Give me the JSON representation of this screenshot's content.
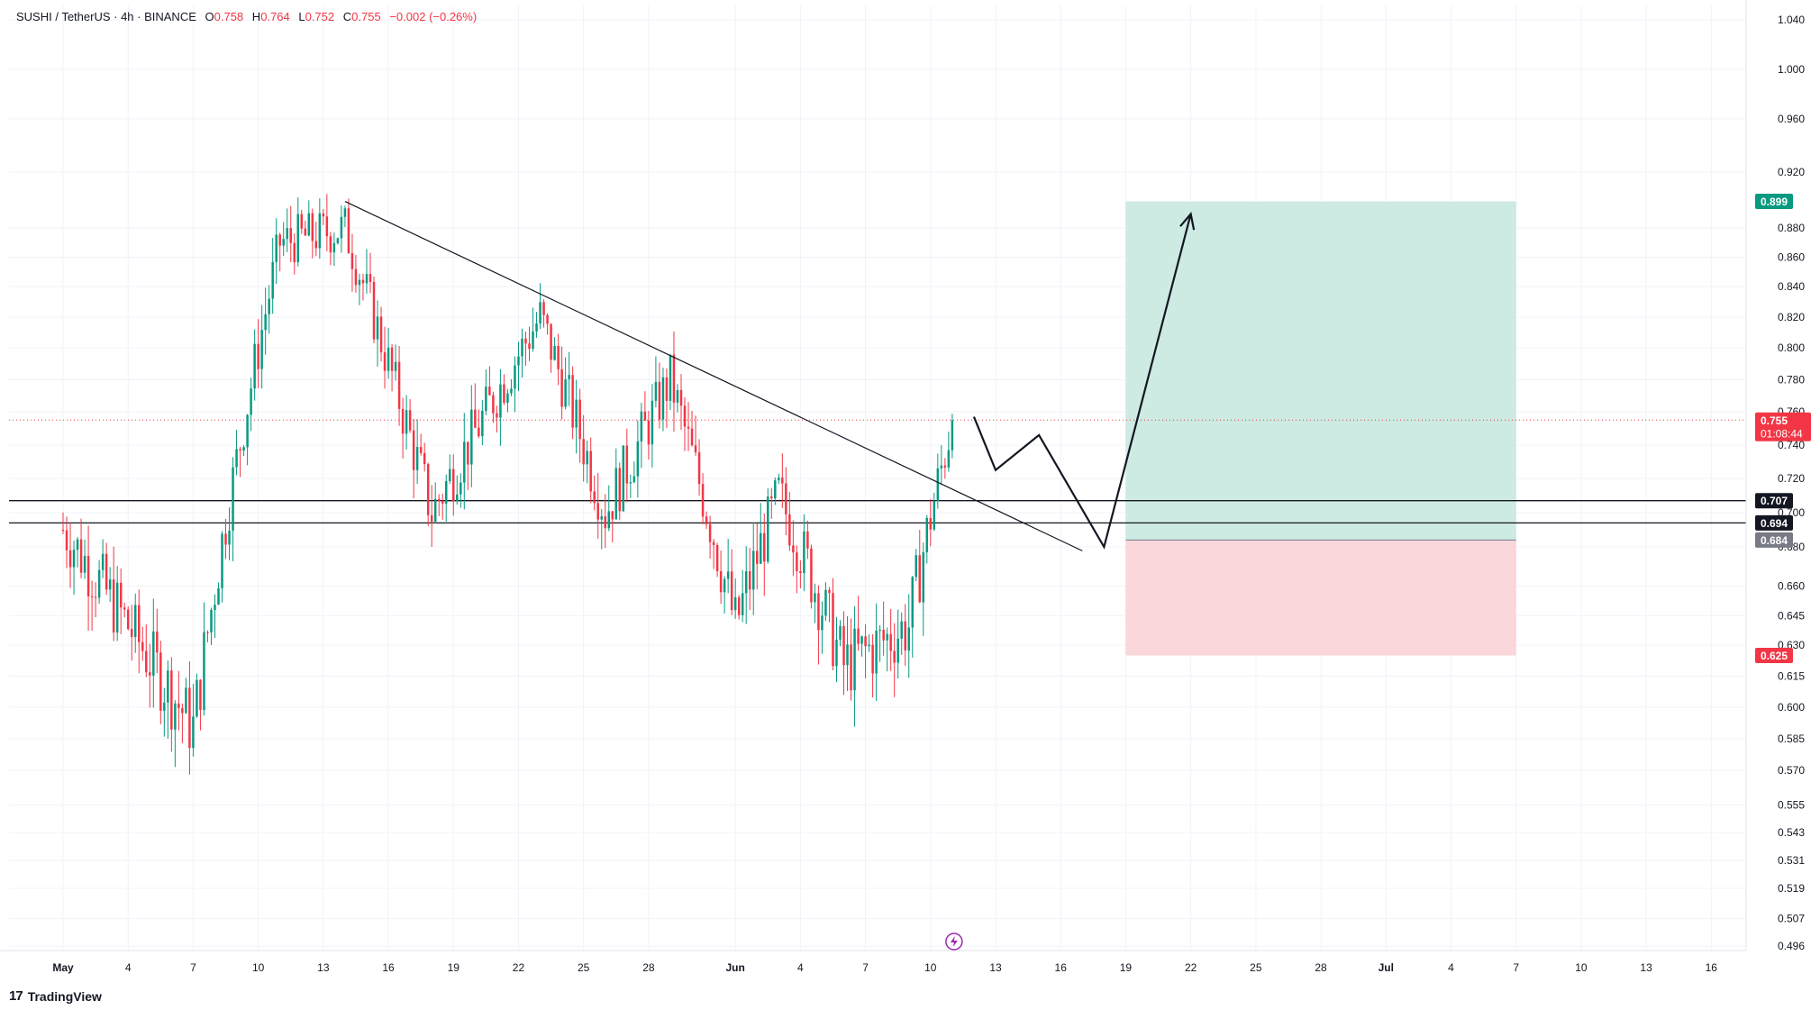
{
  "header": {
    "symbol": "SUSHI / TetherUS · 4h · BINANCE",
    "open_label": "O",
    "open": "0.758",
    "high_label": "H",
    "high": "0.764",
    "low_label": "L",
    "low": "0.752",
    "close_label": "C",
    "close": "0.755",
    "change": "−0.002 (−0.26%)"
  },
  "brand": {
    "logo": "17",
    "name": "TradingView"
  },
  "colors": {
    "up": "#089981",
    "down": "#f23645",
    "grid": "#f0f3fa",
    "profit_zone": "#cdeae3",
    "loss_zone": "#f9d7da",
    "axis_text": "#131722"
  },
  "chart_data": {
    "type": "candlestick",
    "ylim": [
      0.49,
      1.05
    ],
    "y_ticks": [
      "1.040",
      "1.000",
      "0.960",
      "0.920",
      "0.880",
      "0.860",
      "0.840",
      "0.820",
      "0.800",
      "0.780",
      "0.760",
      "0.740",
      "0.720",
      "0.700",
      "0.680",
      "0.660",
      "0.645",
      "0.630",
      "0.615",
      "0.600",
      "0.585",
      "0.570",
      "0.555",
      "0.543",
      "0.531",
      "0.519",
      "0.507",
      "0.496"
    ],
    "x_ticks": [
      "May",
      "4",
      "7",
      "10",
      "13",
      "16",
      "19",
      "22",
      "25",
      "28",
      "Jun",
      "4",
      "7",
      "10",
      "13",
      "16",
      "19",
      "22",
      "25",
      "28",
      "Jul",
      "4",
      "7",
      "10",
      "13",
      "16"
    ],
    "price_labels": [
      {
        "text": "0.899",
        "value": 0.899,
        "style": "green"
      },
      {
        "text": "0.755",
        "value": 0.755,
        "style": "red",
        "sub": "01:08:44"
      },
      {
        "text": "0.707",
        "value": 0.707,
        "style": "black"
      },
      {
        "text": "0.694",
        "value": 0.694,
        "style": "black"
      },
      {
        "text": "0.684",
        "value": 0.684,
        "style": "gray"
      },
      {
        "text": "0.625",
        "value": 0.625,
        "style": "red"
      }
    ],
    "horizontal_lines": [
      0.707,
      0.694
    ],
    "current_price": 0.755,
    "trendline": [
      {
        "date": "May 14",
        "value": 0.899
      },
      {
        "date": "Jun 17",
        "value": 0.678
      }
    ],
    "position": {
      "entry": 0.684,
      "target": 0.899,
      "stop": 0.625,
      "start": "Jun 19",
      "end": "Jul 7"
    },
    "projection": [
      {
        "date": "Jun 12",
        "value": 0.757
      },
      {
        "date": "Jun 13",
        "value": 0.725
      },
      {
        "date": "Jun 15",
        "value": 0.746
      },
      {
        "date": "Jun 18",
        "value": 0.68
      },
      {
        "date": "Jun 22",
        "value": 0.89
      }
    ],
    "key_closes": [
      {
        "date": "May 1",
        "value": 0.69
      },
      {
        "date": "May 7",
        "value": 0.59
      },
      {
        "date": "May 11",
        "value": 0.87
      },
      {
        "date": "May 14",
        "value": 0.88
      },
      {
        "date": "May 18",
        "value": 0.7
      },
      {
        "date": "May 23",
        "value": 0.82
      },
      {
        "date": "May 26",
        "value": 0.7
      },
      {
        "date": "May 29",
        "value": 0.78
      },
      {
        "date": "Jun 1",
        "value": 0.64
      },
      {
        "date": "Jun 3",
        "value": 0.71
      },
      {
        "date": "Jun 6",
        "value": 0.62
      },
      {
        "date": "Jun 9",
        "value": 0.64
      },
      {
        "date": "Jun 11",
        "value": 0.755
      }
    ]
  }
}
